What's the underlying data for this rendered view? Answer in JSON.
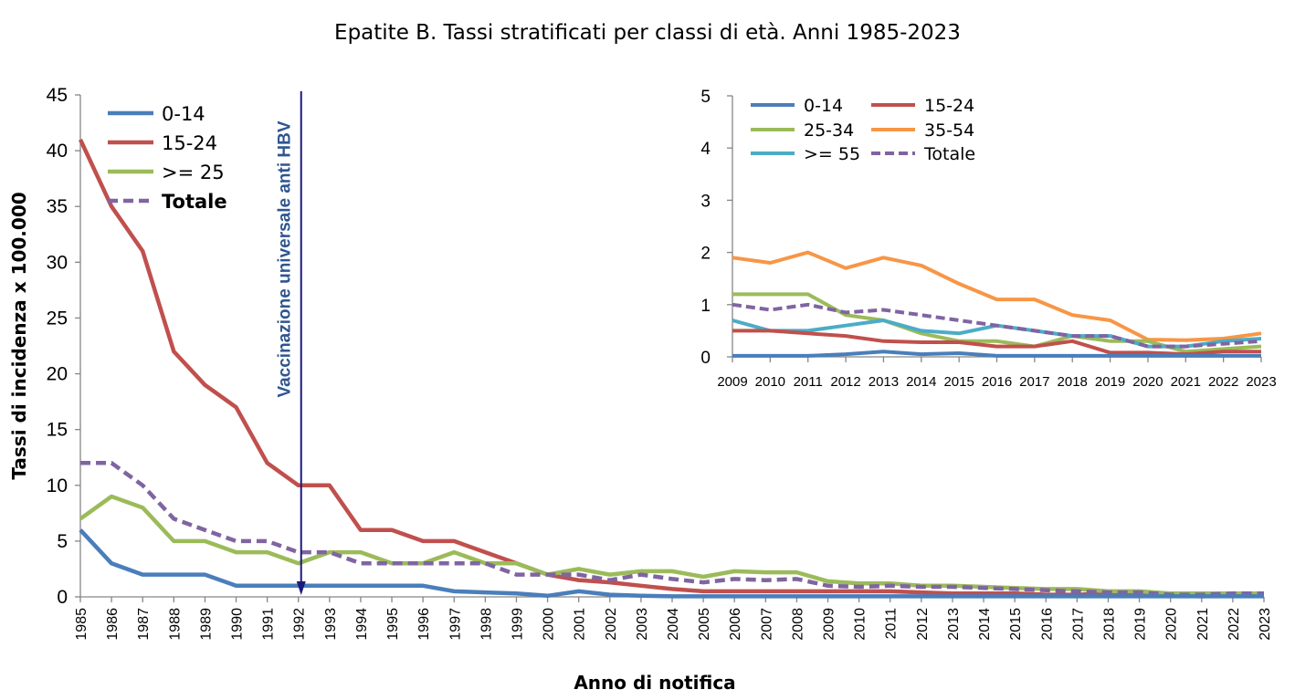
{
  "chart_data": [
    {
      "type": "line",
      "title": "Epatite B. Tassi stratificati per classi di età. Anni 1985-2023",
      "xlabel": "Anno di notifica",
      "ylabel": "Tassi di incidenza x 100.000",
      "ylim": [
        0,
        45
      ],
      "yticks": [
        0,
        5,
        10,
        15,
        20,
        25,
        30,
        35,
        40,
        45
      ],
      "grid": false,
      "legend_position": "top-left",
      "x": [
        "1985",
        "1986",
        "1987",
        "1988",
        "1989",
        "1990",
        "1991",
        "1992",
        "1993",
        "1994",
        "1995",
        "1996",
        "1997",
        "1998",
        "1999",
        "2000",
        "2001",
        "2002",
        "2003",
        "2004",
        "2005",
        "2006",
        "2007",
        "2008",
        "2009",
        "2010",
        "2011",
        "2012",
        "2013",
        "2014",
        "2015",
        "2016",
        "2017",
        "2018",
        "2019",
        "2020",
        "2021",
        "2022",
        "2023"
      ],
      "annotation": {
        "text": "Vaccinazione universale anti HBV",
        "year": "1992",
        "color": "#1a1a7a"
      },
      "series": [
        {
          "name": "0-14",
          "color": "#4a7ebb",
          "dashed": false,
          "bold_label": false,
          "values": [
            6,
            3,
            2,
            2,
            2,
            1,
            1,
            1,
            1,
            1,
            1,
            1,
            0.5,
            0.4,
            0.3,
            0.1,
            0.5,
            0.2,
            0.1,
            0.05,
            0.05,
            0.05,
            0.05,
            0.05,
            0.05,
            0.05,
            0.05,
            0.05,
            0.05,
            0.05,
            0.05,
            0.05,
            0.05,
            0.05,
            0.05,
            0.05,
            0.05,
            0.05,
            0.05
          ]
        },
        {
          "name": "15-24",
          "color": "#c0504d",
          "dashed": false,
          "bold_label": false,
          "values": [
            41,
            35,
            31,
            22,
            19,
            17,
            12,
            10,
            10,
            6,
            6,
            5,
            5,
            4,
            3,
            2,
            1.5,
            1.3,
            1,
            0.7,
            0.5,
            0.5,
            0.5,
            0.5,
            0.5,
            0.5,
            0.5,
            0.4,
            0.3,
            0.3,
            0.3,
            0.2,
            0.2,
            0.3,
            0.1,
            0.1,
            0.05,
            0.1,
            0.1
          ]
        },
        {
          "name": ">= 25",
          "color": "#9bbb59",
          "dashed": false,
          "bold_label": false,
          "values": [
            7,
            9,
            8,
            5,
            5,
            4,
            4,
            3,
            4,
            4,
            3,
            3,
            4,
            3,
            3,
            2,
            2.5,
            2,
            2.3,
            2.3,
            1.8,
            2.3,
            2.2,
            2.2,
            1.4,
            1.2,
            1.2,
            1,
            1,
            0.9,
            0.8,
            0.7,
            0.7,
            0.5,
            0.5,
            0.3,
            0.3,
            0.3,
            0.3
          ]
        },
        {
          "name": "Totale",
          "color": "#8064a2",
          "dashed": true,
          "bold_label": true,
          "values": [
            12,
            12,
            10,
            7,
            6,
            5,
            5,
            4,
            4,
            3,
            3,
            3,
            3,
            3,
            2,
            2,
            2,
            1.5,
            2,
            1.6,
            1.3,
            1.6,
            1.5,
            1.6,
            1,
            0.9,
            1,
            0.9,
            0.9,
            0.8,
            0.7,
            0.6,
            0.5,
            0.4,
            0.4,
            0.2,
            0.2,
            0.3,
            0.3
          ]
        }
      ]
    },
    {
      "type": "line",
      "title": "",
      "xlabel": "",
      "ylabel": "",
      "ylim": [
        0,
        5
      ],
      "yticks": [
        0,
        1,
        2,
        3,
        4,
        5
      ],
      "grid": false,
      "legend_position": "top",
      "x": [
        "2009",
        "2010",
        "2011",
        "2012",
        "2013",
        "2014",
        "2015",
        "2016",
        "2017",
        "2018",
        "2019",
        "2020",
        "2021",
        "2022",
        "2023"
      ],
      "series": [
        {
          "name": "0-14",
          "color": "#4a7ebb",
          "dashed": false,
          "values": [
            0.02,
            0.02,
            0.02,
            0.05,
            0.1,
            0.05,
            0.07,
            0.02,
            0.02,
            0.02,
            0.02,
            0.02,
            0.02,
            0.02,
            0.02
          ]
        },
        {
          "name": "15-24",
          "color": "#c0504d",
          "dashed": false,
          "values": [
            0.5,
            0.5,
            0.45,
            0.4,
            0.3,
            0.28,
            0.28,
            0.2,
            0.2,
            0.3,
            0.08,
            0.08,
            0.05,
            0.1,
            0.1
          ]
        },
        {
          "name": "25-34",
          "color": "#9bbb59",
          "dashed": false,
          "values": [
            1.2,
            1.2,
            1.2,
            0.8,
            0.7,
            0.45,
            0.3,
            0.3,
            0.2,
            0.4,
            0.3,
            0.3,
            0.1,
            0.15,
            0.2
          ]
        },
        {
          "name": "35-54",
          "color": "#f79646",
          "dashed": false,
          "values": [
            1.9,
            1.8,
            2,
            1.7,
            1.9,
            1.75,
            1.4,
            1.1,
            1.1,
            0.8,
            0.7,
            0.33,
            0.32,
            0.35,
            0.45
          ]
        },
        {
          "name": ">= 55",
          "color": "#4bacc6",
          "dashed": false,
          "values": [
            0.7,
            0.5,
            0.5,
            0.6,
            0.7,
            0.5,
            0.45,
            0.6,
            0.5,
            0.4,
            0.4,
            0.2,
            0.2,
            0.3,
            0.35
          ]
        },
        {
          "name": "Totale",
          "color": "#8064a2",
          "dashed": true,
          "values": [
            1,
            0.9,
            1,
            0.85,
            0.9,
            0.8,
            0.7,
            0.6,
            0.5,
            0.4,
            0.4,
            0.2,
            0.2,
            0.25,
            0.3
          ]
        }
      ]
    }
  ]
}
